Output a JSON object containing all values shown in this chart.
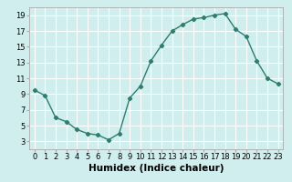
{
  "x": [
    0,
    1,
    2,
    3,
    4,
    5,
    6,
    7,
    8,
    9,
    10,
    11,
    12,
    13,
    14,
    15,
    16,
    17,
    18,
    19,
    20,
    21,
    22,
    23
  ],
  "y": [
    9.5,
    8.8,
    6.0,
    5.5,
    4.5,
    4.0,
    3.8,
    3.2,
    4.0,
    8.5,
    10.0,
    13.2,
    15.2,
    17.0,
    17.8,
    18.5,
    18.7,
    19.0,
    19.2,
    17.2,
    16.3,
    13.2,
    11.0,
    10.3
  ],
  "line_color": "#2e7d6e",
  "marker": "D",
  "marker_size": 2.2,
  "bg_color": "#d0eeee",
  "grid_color": "#ffffff",
  "xlabel": "Humidex (Indice chaleur)",
  "xlabel_fontsize": 7.5,
  "ylim": [
    2,
    20
  ],
  "xlim": [
    -0.5,
    23.5
  ],
  "yticks": [
    3,
    5,
    7,
    9,
    11,
    13,
    15,
    17,
    19
  ],
  "xtick_labels": [
    "0",
    "1",
    "2",
    "3",
    "4",
    "5",
    "6",
    "7",
    "8",
    "9",
    "10",
    "11",
    "12",
    "13",
    "14",
    "15",
    "16",
    "17",
    "18",
    "19",
    "20",
    "21",
    "22",
    "23"
  ],
  "tick_fontsize": 6.0
}
